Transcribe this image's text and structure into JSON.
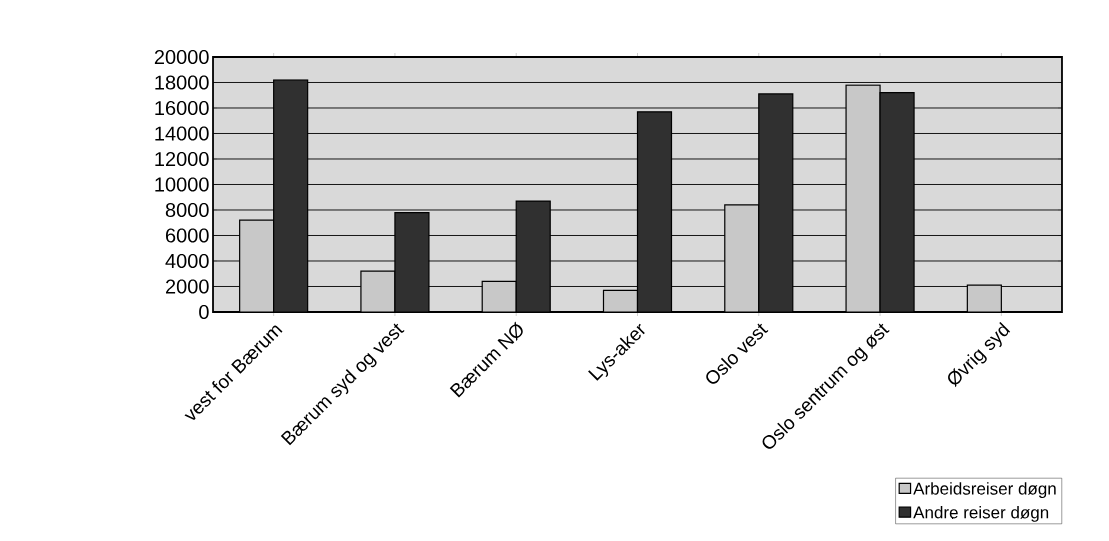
{
  "chart_data": {
    "type": "bar",
    "categories": [
      "vest for Bærum",
      "Bærum syd og vest",
      "Bærum NØ",
      "Lys-aker",
      "Oslo vest",
      "Oslo sentrum og øst",
      "Øvrig syd"
    ],
    "series": [
      {
        "name": "Arbeidsreiser døgn",
        "color": "#c8c8c8",
        "values": [
          7200,
          3200,
          2400,
          1700,
          8400,
          17800,
          2100
        ]
      },
      {
        "name": "Andre reiser døgn",
        "color": "#303030",
        "values": [
          18200,
          7800,
          8700,
          15700,
          17100,
          17200,
          null
        ]
      }
    ],
    "ylim": [
      0,
      20000
    ],
    "yticks": [
      0,
      2000,
      4000,
      6000,
      8000,
      10000,
      12000,
      14000,
      16000,
      18000,
      20000
    ],
    "grid": "y",
    "legend": "bottom right"
  }
}
